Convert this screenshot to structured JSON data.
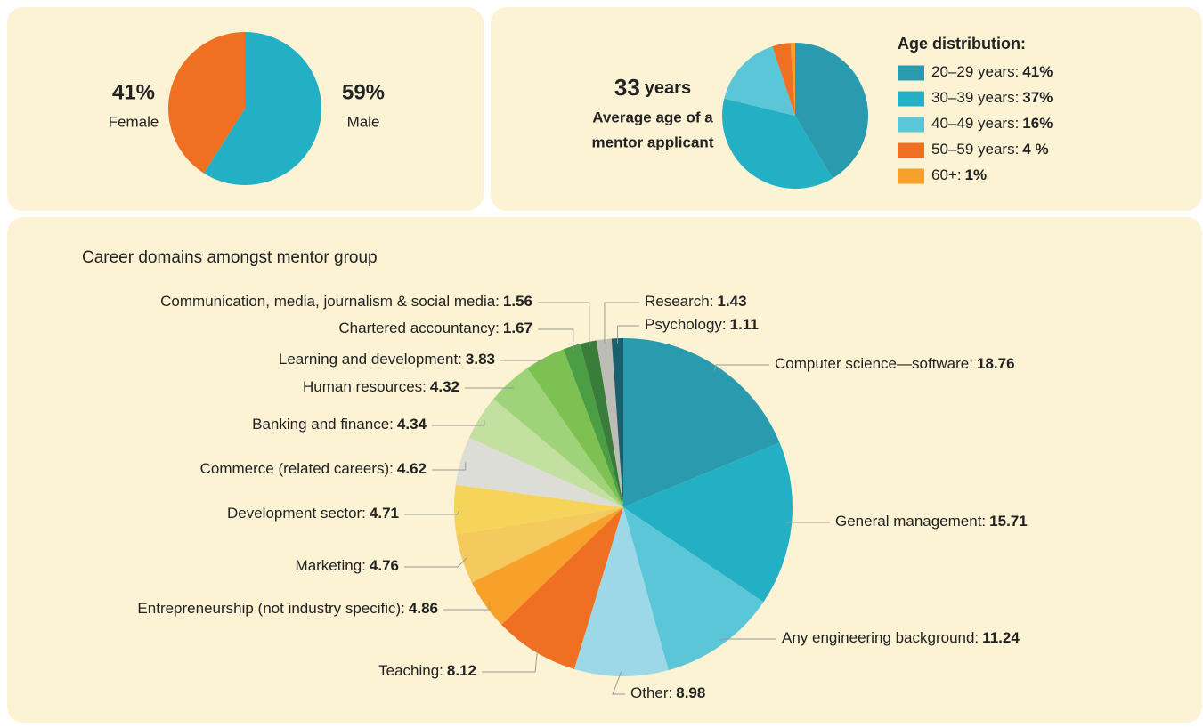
{
  "chart_data": [
    {
      "type": "pie",
      "categories": [
        "Male",
        "Female"
      ],
      "values": [
        59,
        41
      ],
      "value_labels": [
        "59%",
        "41%"
      ],
      "colors": [
        "#24b0c4",
        "#f07023"
      ]
    },
    {
      "type": "pie",
      "legend_title": "Age distribution:",
      "annotation": {
        "value": 33,
        "unit": "years",
        "lines": [
          "Average age of a",
          "mentor applicant"
        ]
      },
      "categories": [
        "20–29 years:",
        "30–39 years:",
        "40–49 years:",
        "50–59 years:",
        "60+:"
      ],
      "values": [
        41,
        37,
        16,
        4,
        1
      ],
      "value_labels": [
        "41%",
        "37%",
        "16%",
        "4 %",
        "1%"
      ],
      "colors": [
        "#2a9aae",
        "#24b0c4",
        "#5bc6d8",
        "#f07023",
        "#f7a02a"
      ]
    },
    {
      "type": "pie",
      "title": "Career domains amongst mentor group",
      "categories": [
        "Computer science—software:",
        "General management:",
        "Any engineering background:",
        "Other:",
        "Teaching:",
        "Entrepreneurship (not industry specific):",
        "Marketing:",
        "Development sector:",
        "Commerce (related careers):",
        "Banking and finance:",
        "Human resources:",
        "Learning and development:",
        "Chartered accountancy:",
        "Communication, media, journalism & social media:",
        "Research:",
        "Psychology:"
      ],
      "values": [
        18.76,
        15.71,
        11.24,
        8.98,
        8.12,
        4.86,
        4.76,
        4.71,
        4.62,
        4.34,
        4.32,
        3.83,
        1.67,
        1.56,
        1.43,
        1.11
      ],
      "colors": [
        "#2a9aae",
        "#24b0c4",
        "#5bc6d8",
        "#9dd8e8",
        "#f07023",
        "#f7a02a",
        "#f4c95e",
        "#f6d45a",
        "#ddddd7",
        "#c3e0a0",
        "#9fd37a",
        "#7cc152",
        "#4c9e44",
        "#3a7d3a",
        "#bdbcb5",
        "#195f6e"
      ]
    }
  ]
}
